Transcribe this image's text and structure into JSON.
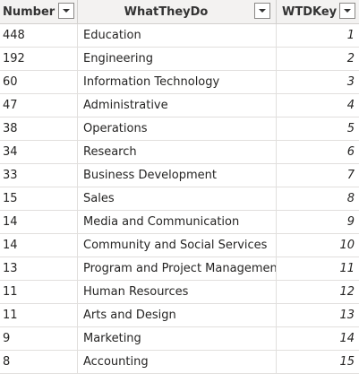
{
  "table": {
    "columns": [
      {
        "label": "Number",
        "filter_icon": "chevron-down-icon"
      },
      {
        "label": "WhatTheyDo",
        "filter_icon": "chevron-down-icon"
      },
      {
        "label": "WTDKey",
        "filter_icon": "chevron-down-icon"
      }
    ],
    "rows": [
      {
        "number": "448",
        "what": "Education",
        "key": "1"
      },
      {
        "number": "192",
        "what": "Engineering",
        "key": "2"
      },
      {
        "number": "60",
        "what": "Information Technology",
        "key": "3"
      },
      {
        "number": "47",
        "what": "Administrative",
        "key": "4"
      },
      {
        "number": "38",
        "what": "Operations",
        "key": "5"
      },
      {
        "number": "34",
        "what": "Research",
        "key": "6"
      },
      {
        "number": "33",
        "what": "Business Development",
        "key": "7"
      },
      {
        "number": "15",
        "what": "Sales",
        "key": "8"
      },
      {
        "number": "14",
        "what": "Media and Communication",
        "key": "9"
      },
      {
        "number": "14",
        "what": "Community and Social Services",
        "key": "10"
      },
      {
        "number": "13",
        "what": "Program and Project Management",
        "key": "11"
      },
      {
        "number": "11",
        "what": "Human Resources",
        "key": "12"
      },
      {
        "number": "11",
        "what": "Arts and Design",
        "key": "13"
      },
      {
        "number": "9",
        "what": "Marketing",
        "key": "14"
      },
      {
        "number": "8",
        "what": "Accounting",
        "key": "15"
      }
    ]
  }
}
